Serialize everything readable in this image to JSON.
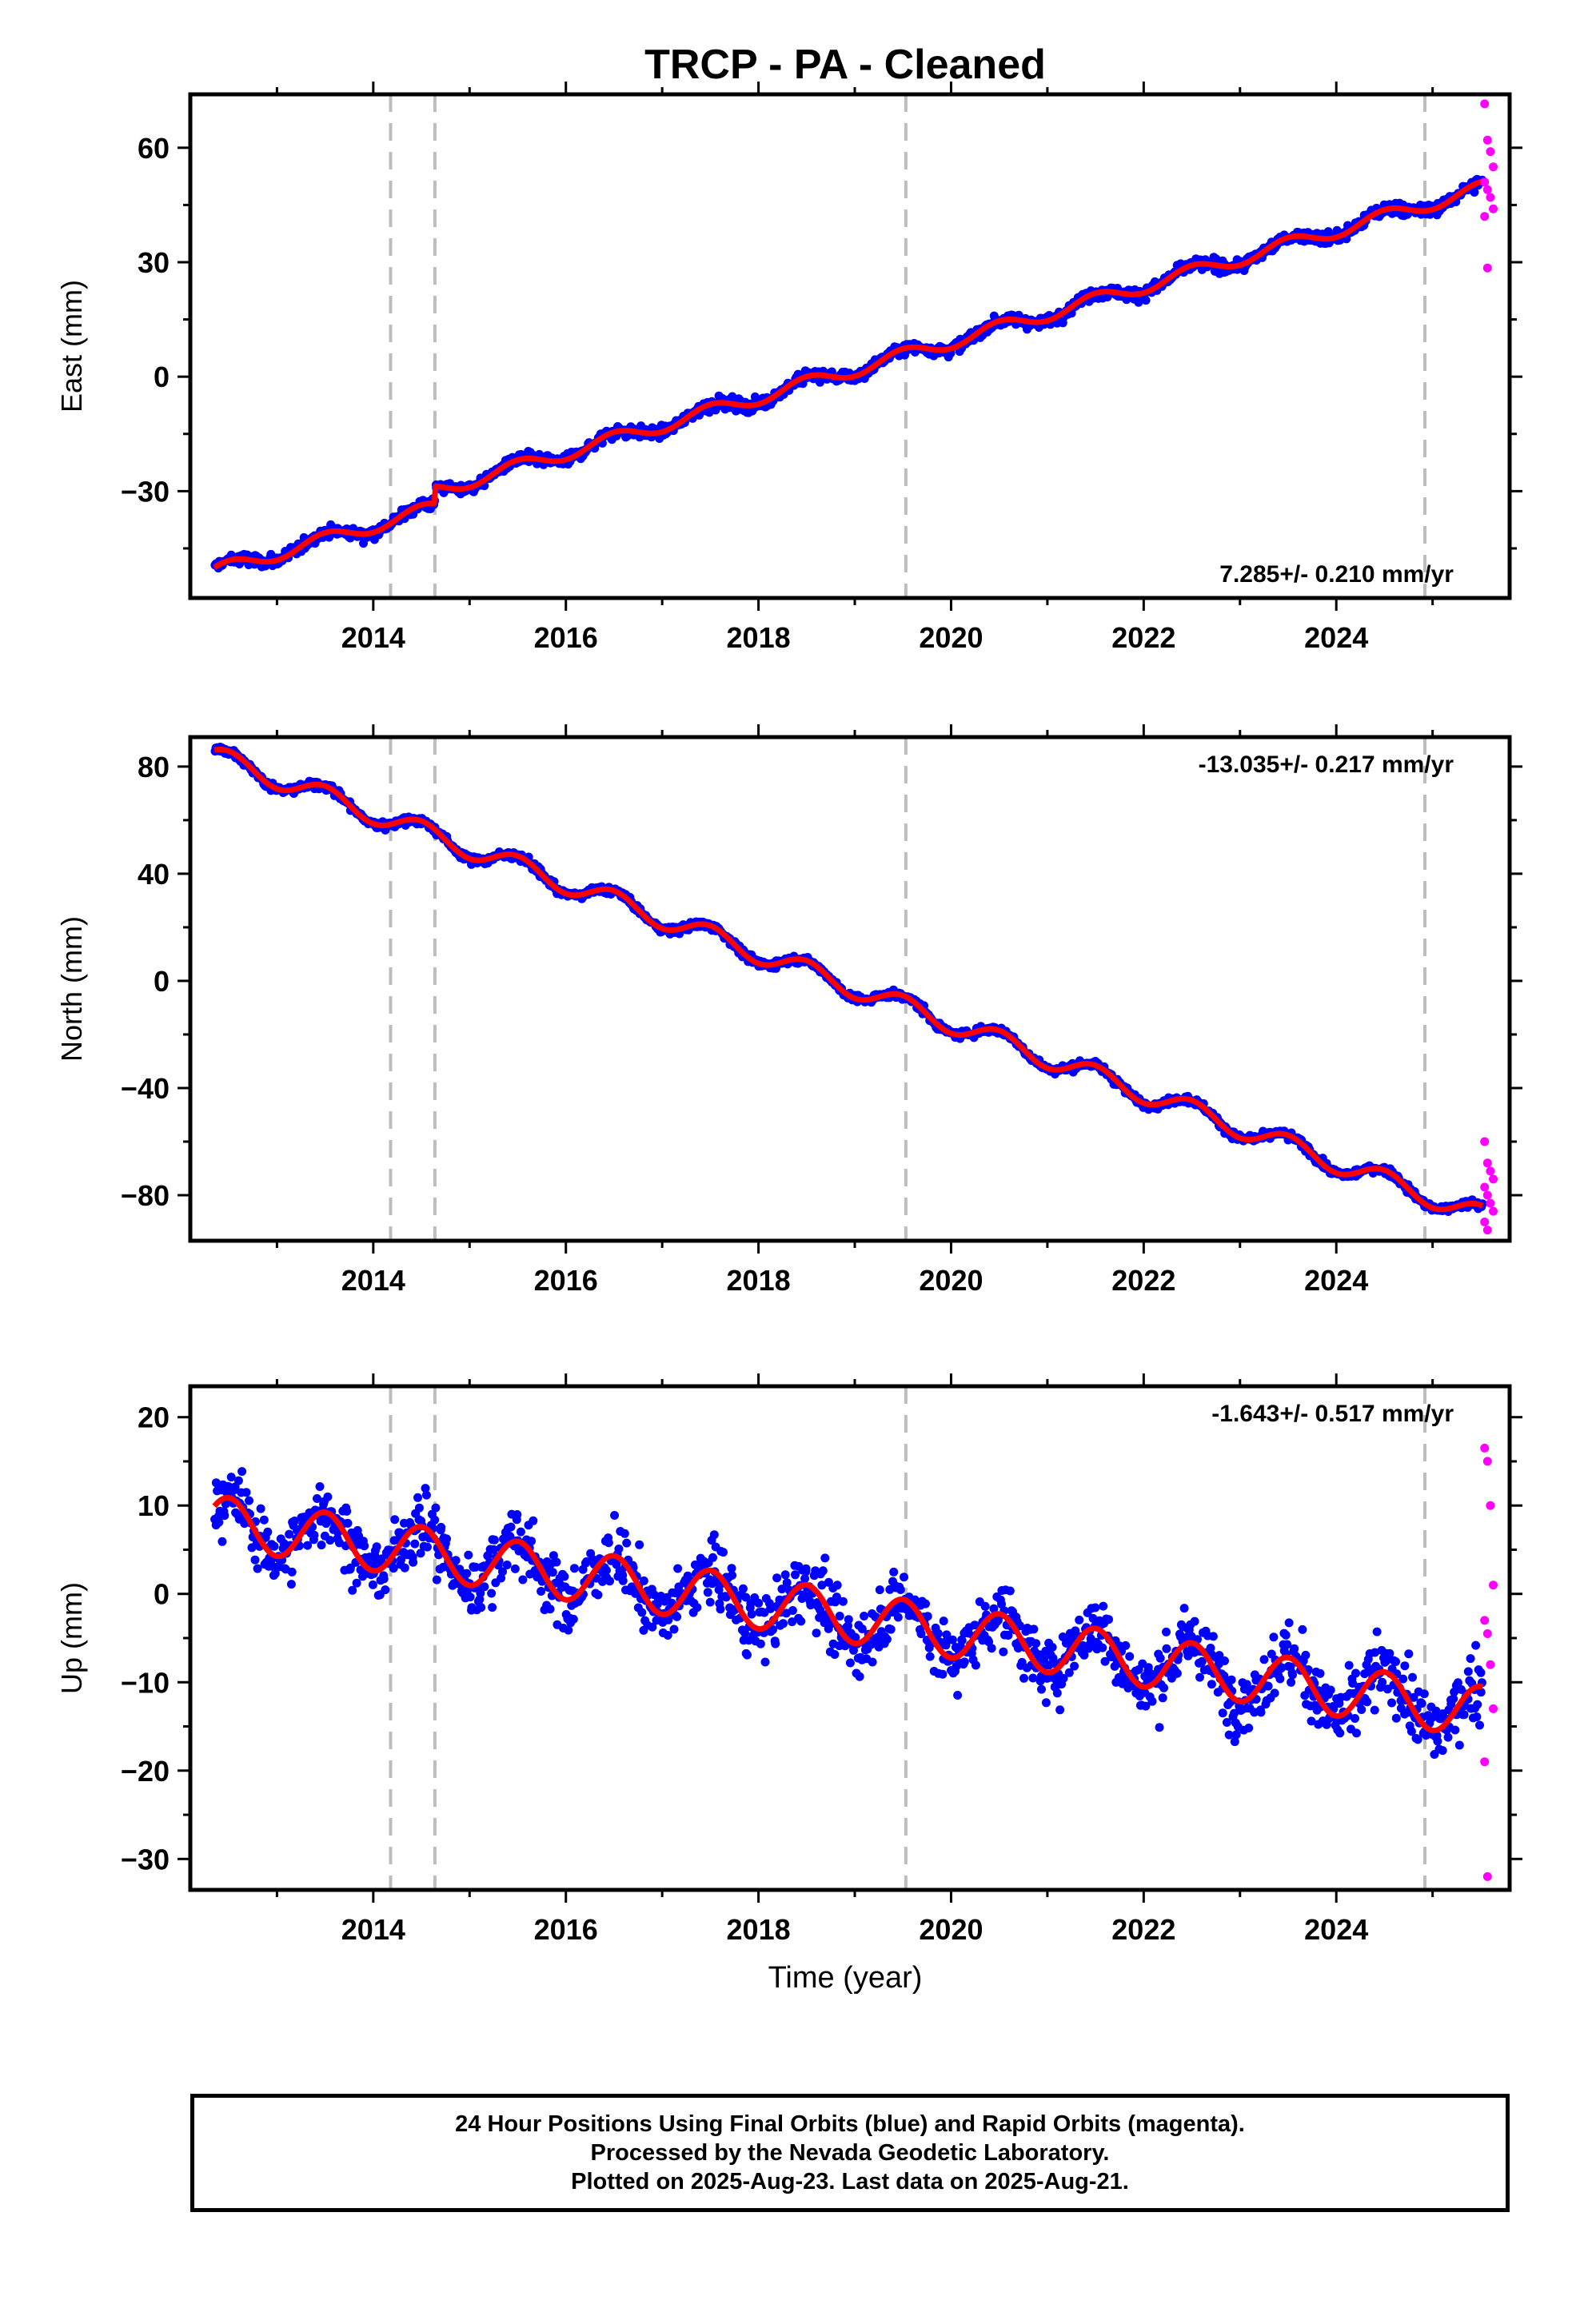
{
  "title": "TRCP  - PA - Cleaned",
  "xlabel": "Time (year)",
  "colors": {
    "final": "#0000ff",
    "rapid": "#ff00ff",
    "model": "#ff0000",
    "breaks": "#bdbdbd"
  },
  "footer": {
    "line1": "24 Hour Positions Using Final Orbits (blue) and Rapid Orbits (magenta).",
    "line2": "Processed by the Nevada Geodetic Laboratory.",
    "line3": "Plotted on 2025-Aug-23. Last data on 2025-Aug-21."
  },
  "chart_data": [
    {
      "type": "scatter",
      "title": "TRCP  - PA - Cleaned",
      "ylabel": "East (mm)",
      "xlabel": "",
      "xlim": [
        2012.1,
        2025.8
      ],
      "ylim": [
        -58,
        74
      ],
      "xticks": [
        2014,
        2016,
        2018,
        2020,
        2022,
        2024
      ],
      "yticks": [
        -30,
        0,
        30,
        60
      ],
      "rate_label": "7.285+/- 0.210 mm/yr",
      "rate_position": "bottom-right",
      "break_lines": [
        2014.18,
        2014.64,
        2019.53,
        2024.92
      ],
      "data_start": 2012.35,
      "final_end": 2025.52,
      "rapid_end": 2025.64,
      "model": {
        "rate": 7.285,
        "intercept_2012": -53.6,
        "annual_amp": 1.8,
        "steps": [
          [
            2014.64,
            4.5
          ]
        ]
      },
      "scatter_noise": 1.6,
      "rapid_values": [
        71.5,
        62,
        59,
        55,
        51,
        49,
        47,
        44,
        42,
        28.5
      ]
    },
    {
      "type": "scatter",
      "title": "",
      "ylabel": "North (mm)",
      "xlabel": "",
      "xlim": [
        2012.1,
        2025.8
      ],
      "ylim": [
        -97,
        91
      ],
      "xticks": [
        2014,
        2016,
        2018,
        2020,
        2022,
        2024
      ],
      "yticks": [
        -80,
        -40,
        0,
        40,
        80
      ],
      "rate_label": "-13.035+/- 0.217 mm/yr",
      "rate_position": "top-right",
      "break_lines": [
        2014.18,
        2014.64,
        2019.53,
        2024.92
      ],
      "data_start": 2012.35,
      "final_end": 2025.52,
      "rapid_end": 2025.64,
      "model": {
        "rate": -13.035,
        "intercept_2012": 88.5,
        "annual_amp": 3.8,
        "steps": []
      },
      "scatter_noise": 1.5,
      "rapid_values": [
        -60,
        -68,
        -71,
        -74,
        -77,
        -80,
        -83,
        -86,
        -90,
        -93
      ]
    },
    {
      "type": "scatter",
      "title": "",
      "ylabel": "Up (mm)",
      "xlabel": "Time (year)",
      "xlim": [
        2012.1,
        2025.8
      ],
      "ylim": [
        -33.5,
        23.5
      ],
      "xticks": [
        2014,
        2016,
        2018,
        2020,
        2022,
        2024
      ],
      "yticks": [
        -30,
        -20,
        -10,
        0,
        10,
        20
      ],
      "rate_label": "-1.643+/- 0.517 mm/yr",
      "rate_position": "top-right",
      "break_lines": [
        2014.18,
        2014.64,
        2019.53,
        2024.92
      ],
      "data_start": 2012.35,
      "final_end": 2025.52,
      "rapid_end": 2025.64,
      "model": {
        "rate": -1.643,
        "intercept_2012": 8.8,
        "annual_amp": 2.9,
        "steps": []
      },
      "scatter_noise": 3.6,
      "rapid_values": [
        16.5,
        15,
        10,
        1,
        -3,
        -4.5,
        -8,
        -13,
        -19,
        -32
      ]
    }
  ]
}
